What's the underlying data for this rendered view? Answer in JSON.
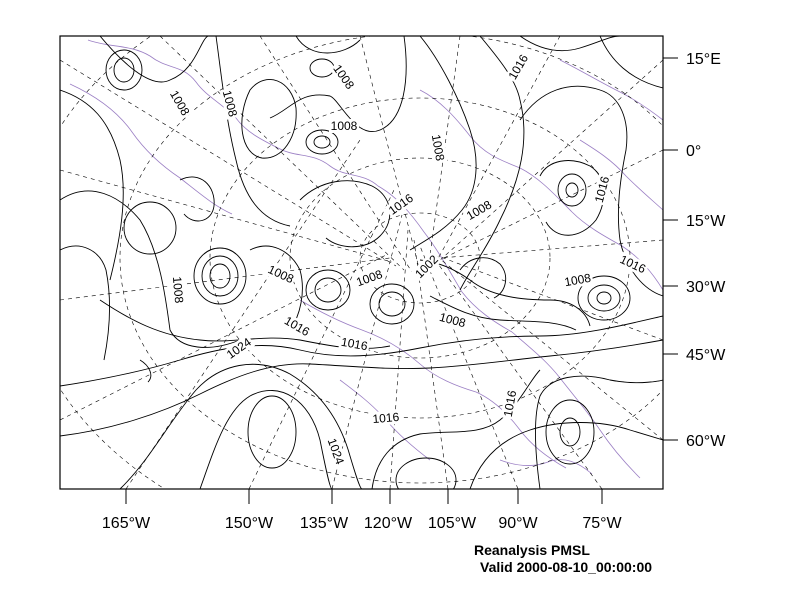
{
  "map": {
    "lon_ticks": [
      "165°W",
      "150°W",
      "135°W",
      "120°W",
      "105°W",
      "90°W",
      "75°W"
    ],
    "lat_ticks": [
      "15°E",
      "0°",
      "15°W",
      "30°W",
      "45°W",
      "60°W"
    ],
    "contour_labels": [
      "1008",
      "1008",
      "1008",
      "1008",
      "1016",
      "1008",
      "1016",
      "1008",
      "1016",
      "1016",
      "1016",
      "1008",
      "1008",
      "1008",
      "1002",
      "1008",
      "1008",
      "1016",
      "1016",
      "1016",
      "1024",
      "1016",
      "1024",
      "1016"
    ],
    "colors": {
      "contour": "#000000",
      "coastline": "#9b7fc4",
      "grid": "#000000"
    }
  },
  "caption": {
    "title": "Reanalysis PMSL",
    "valid": "Valid 2000-08-10_00:00:00"
  }
}
